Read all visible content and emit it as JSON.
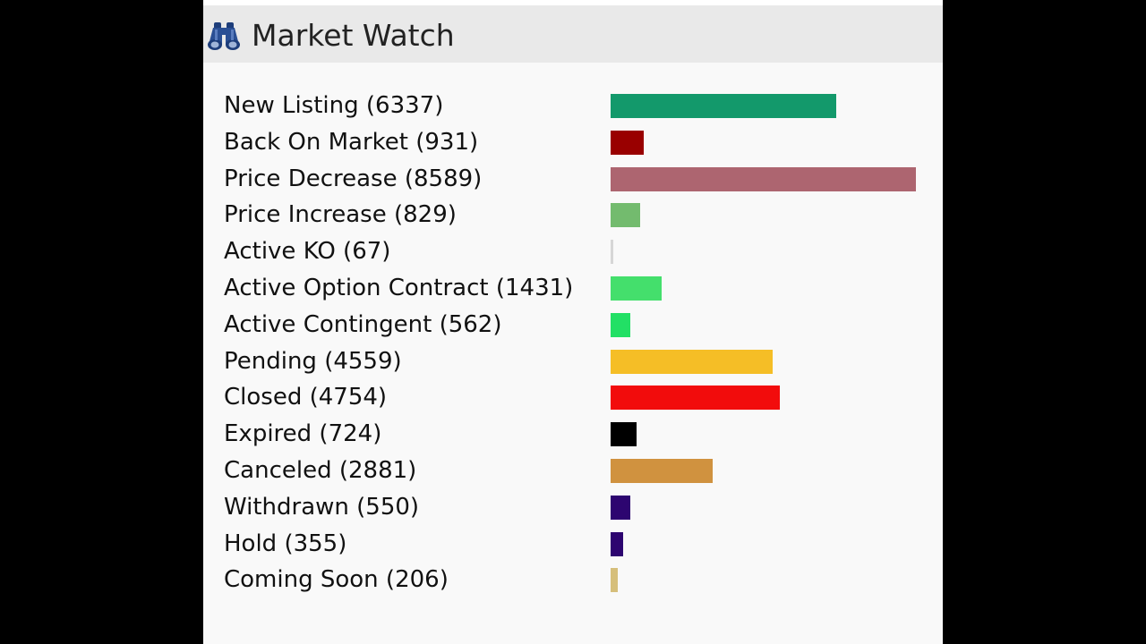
{
  "header": {
    "title": "Market Watch",
    "icon": "binoculars-icon"
  },
  "chart_data": {
    "type": "bar",
    "orientation": "horizontal",
    "max_value": 8589,
    "categories": [
      "New Listing",
      "Back On Market",
      "Price Decrease",
      "Price Increase",
      "Active KO",
      "Active Option Contract",
      "Active Contingent",
      "Pending",
      "Closed",
      "Expired",
      "Canceled",
      "Withdrawn",
      "Hold",
      "Coming Soon"
    ],
    "values": [
      6337,
      931,
      8589,
      829,
      67,
      1431,
      562,
      4559,
      4754,
      724,
      2881,
      550,
      355,
      206
    ],
    "colors": [
      "#13996b",
      "#990000",
      "#ad6570",
      "#73bb6e",
      "#d6d6d6",
      "#44df6c",
      "#22e065",
      "#f5be26",
      "#f20c0c",
      "#000000",
      "#d0923f",
      "#2d0570",
      "#2d0570",
      "#d6bf7b"
    ]
  },
  "rows": [
    {
      "label": "New Listing (6337)"
    },
    {
      "label": "Back On Market (931)"
    },
    {
      "label": "Price Decrease (8589)"
    },
    {
      "label": "Price Increase (829)"
    },
    {
      "label": "Active KO (67)"
    },
    {
      "label": "Active Option Contract (1431)"
    },
    {
      "label": "Active Contingent (562)"
    },
    {
      "label": "Pending (4559)"
    },
    {
      "label": "Closed (4754)"
    },
    {
      "label": "Expired (724)"
    },
    {
      "label": "Canceled (2881)"
    },
    {
      "label": "Withdrawn (550)"
    },
    {
      "label": "Hold (355)"
    },
    {
      "label": "Coming Soon (206)"
    }
  ]
}
